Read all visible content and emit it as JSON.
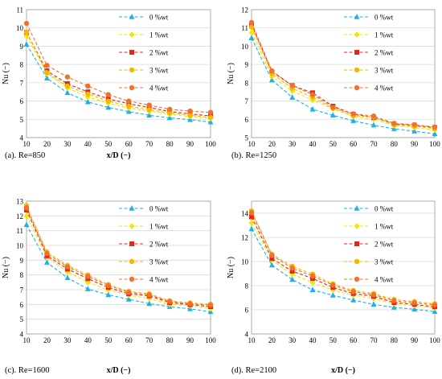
{
  "legend_labels": [
    "0 %wt",
    "1 %wt",
    "2 %wt",
    "3 %wt",
    "4 %wt"
  ],
  "series_colors": [
    "#1ab2e8",
    "#f2e600",
    "#e8241c",
    "#f5b800",
    "#f0722a"
  ],
  "series_markers": [
    "triangle",
    "diamond",
    "square",
    "circle",
    "circle"
  ],
  "chart_data": [
    {
      "type": "line",
      "panel_label": "(a). Re=850",
      "xlabel": "x/D (−)",
      "ylabel": "Nu (−)",
      "xlim": [
        10,
        100
      ],
      "ylim": [
        4,
        11
      ],
      "xticks": [
        10,
        20,
        30,
        40,
        50,
        60,
        70,
        80,
        90,
        100
      ],
      "yticks": [
        4,
        5,
        6,
        7,
        8,
        9,
        10,
        11
      ],
      "legend_position": "right",
      "x": [
        10,
        20,
        30,
        40,
        50,
        60,
        70,
        80,
        90,
        100
      ],
      "series": [
        {
          "name": "0 %wt",
          "values": [
            9.1,
            7.25,
            6.45,
            5.95,
            5.65,
            5.42,
            5.22,
            5.08,
            4.98,
            4.85
          ]
        },
        {
          "name": "1 %wt",
          "values": [
            9.55,
            7.5,
            6.72,
            6.22,
            5.88,
            5.62,
            5.45,
            5.28,
            5.15,
            5.05
          ]
        },
        {
          "name": "2 %wt",
          "values": [
            9.75,
            7.65,
            6.95,
            6.5,
            6.12,
            5.85,
            5.65,
            5.42,
            5.3,
            5.18
          ]
        },
        {
          "name": "3 %wt",
          "values": [
            9.75,
            7.55,
            6.82,
            6.38,
            6.0,
            5.72,
            5.52,
            5.35,
            5.22,
            5.1
          ]
        },
        {
          "name": "4 %wt",
          "values": [
            10.25,
            7.95,
            7.32,
            6.82,
            6.35,
            6.0,
            5.78,
            5.55,
            5.45,
            5.38
          ]
        }
      ]
    },
    {
      "type": "line",
      "panel_label": "(b). Re=1250",
      "xlabel": "",
      "ylabel": "Nu (−)",
      "xlim": [
        10,
        100
      ],
      "ylim": [
        5,
        12
      ],
      "xticks": [
        10,
        20,
        30,
        40,
        50,
        60,
        70,
        80,
        90,
        100
      ],
      "yticks": [
        5,
        6,
        7,
        8,
        9,
        10,
        11,
        12
      ],
      "legend_position": "right",
      "x": [
        10,
        20,
        30,
        40,
        50,
        60,
        70,
        80,
        90,
        100
      ],
      "series": [
        {
          "name": "0 %wt",
          "values": [
            10.45,
            8.15,
            7.2,
            6.55,
            6.22,
            5.92,
            5.68,
            5.48,
            5.35,
            5.2
          ]
        },
        {
          "name": "1 %wt",
          "values": [
            10.75,
            8.35,
            7.55,
            7.05,
            6.58,
            6.15,
            6.0,
            5.65,
            5.55,
            5.42
          ]
        },
        {
          "name": "2 %wt",
          "values": [
            11.2,
            8.6,
            7.85,
            7.45,
            6.72,
            6.28,
            6.1,
            5.75,
            5.68,
            5.55
          ]
        },
        {
          "name": "3 %wt",
          "values": [
            11.05,
            8.5,
            7.7,
            7.2,
            6.6,
            6.2,
            6.12,
            5.7,
            5.62,
            5.5
          ]
        },
        {
          "name": "4 %wt",
          "values": [
            11.3,
            8.65,
            7.85,
            7.35,
            6.65,
            6.3,
            6.18,
            5.78,
            5.7,
            5.58
          ]
        }
      ]
    },
    {
      "type": "line",
      "panel_label": "(c). Re=1600",
      "xlabel": "x/D (−)",
      "ylabel": "Nu (−)",
      "xlim": [
        10,
        100
      ],
      "ylim": [
        4,
        13
      ],
      "xticks": [
        10,
        20,
        30,
        40,
        50,
        60,
        70,
        80,
        90,
        100
      ],
      "yticks": [
        4,
        5,
        6,
        7,
        8,
        9,
        10,
        11,
        12,
        13
      ],
      "legend_position": "right",
      "x": [
        10,
        20,
        30,
        40,
        50,
        60,
        70,
        80,
        90,
        100
      ],
      "series": [
        {
          "name": "0 %wt",
          "values": [
            11.4,
            8.85,
            7.8,
            7.05,
            6.65,
            6.35,
            6.05,
            5.85,
            5.7,
            5.5
          ]
        },
        {
          "name": "1 %wt",
          "values": [
            12.0,
            9.2,
            8.2,
            7.5,
            7.0,
            6.62,
            6.4,
            6.0,
            5.9,
            5.72
          ]
        },
        {
          "name": "2 %wt",
          "values": [
            12.4,
            9.3,
            8.4,
            7.75,
            7.15,
            6.72,
            6.58,
            6.12,
            5.98,
            5.85
          ]
        },
        {
          "name": "3 %wt",
          "values": [
            12.7,
            9.55,
            8.65,
            8.0,
            7.35,
            6.88,
            6.72,
            6.25,
            6.1,
            6.02
          ]
        },
        {
          "name": "4 %wt",
          "values": [
            12.55,
            9.45,
            8.55,
            7.9,
            7.28,
            6.82,
            6.65,
            6.2,
            6.05,
            5.95
          ]
        }
      ]
    },
    {
      "type": "line",
      "panel_label": "(d). Re=2100",
      "xlabel": "x/D (−)",
      "ylabel": "Nu (−)",
      "xlim": [
        10,
        100
      ],
      "ylim": [
        4,
        15
      ],
      "xticks": [
        10,
        20,
        30,
        40,
        50,
        60,
        70,
        80,
        90,
        100
      ],
      "yticks": [
        4,
        6,
        8,
        10,
        12,
        14
      ],
      "legend_position": "right",
      "x": [
        10,
        20,
        30,
        40,
        50,
        60,
        70,
        80,
        90,
        100
      ],
      "series": [
        {
          "name": "0 %wt",
          "values": [
            12.7,
            9.7,
            8.5,
            7.65,
            7.2,
            6.8,
            6.45,
            6.2,
            6.05,
            5.85
          ]
        },
        {
          "name": "1 %wt",
          "values": [
            13.2,
            10.1,
            8.95,
            8.25,
            7.65,
            7.2,
            6.95,
            6.5,
            6.35,
            6.15
          ]
        },
        {
          "name": "2 %wt",
          "values": [
            13.7,
            10.25,
            9.2,
            8.6,
            7.85,
            7.35,
            7.12,
            6.6,
            6.45,
            6.25
          ]
        },
        {
          "name": "3 %wt",
          "values": [
            14.2,
            10.6,
            9.6,
            8.95,
            8.15,
            7.6,
            7.35,
            6.85,
            6.68,
            6.5
          ]
        },
        {
          "name": "4 %wt",
          "values": [
            14.05,
            10.5,
            9.45,
            8.8,
            8.05,
            7.5,
            7.25,
            6.75,
            6.58,
            6.4
          ]
        }
      ]
    }
  ]
}
